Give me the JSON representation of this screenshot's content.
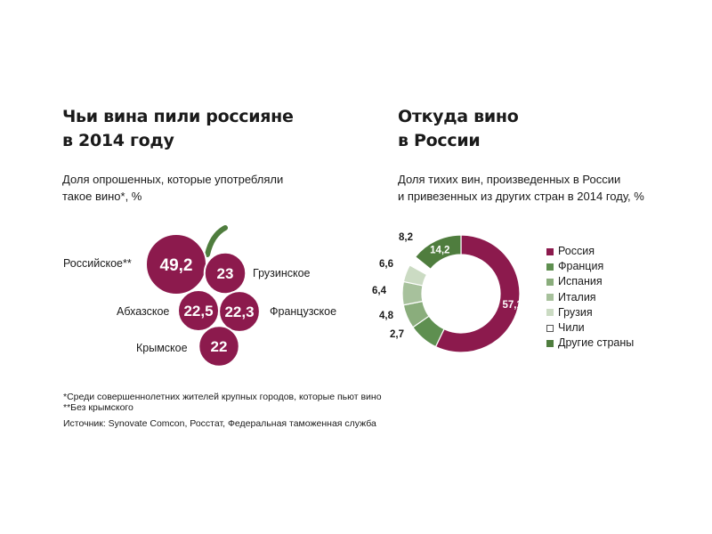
{
  "left": {
    "title_line1": "Чьи вина пили россияне",
    "title_line2": "в 2014 году",
    "subtitle_line1": "Доля опрошенных, которые употребляли",
    "subtitle_line2": "такое вино*, %"
  },
  "right": {
    "title_line1": "Откуда вино",
    "title_line2": "в России",
    "subtitle_line1": "Доля тихих вин, произведенных в России",
    "subtitle_line2": "и привезенных из других стран в 2014 году, %"
  },
  "notes": {
    "line1": "*Среди совершеннолетних жителей крупных городов, которые пьют вино",
    "line2": "**Без крымского",
    "source": "Источник: Synovate Comcon, Росстат, Федеральная таможенная служба"
  },
  "colors": {
    "grape": "#8c1a4d",
    "stem": "#4f7d3e"
  },
  "chart_data": [
    {
      "type": "bubble",
      "title": "Чьи вина пили россияне в 2014 году",
      "subtitle": "Доля опрошенных, которые употребляли такое вино*, %",
      "categories": [
        "Российское**",
        "Грузинское",
        "Абхазское",
        "Французское",
        "Крымское"
      ],
      "values": [
        49.2,
        23,
        22.5,
        22.3,
        22
      ],
      "value_labels": [
        "49,2",
        "23",
        "22,5",
        "22,3",
        "22"
      ]
    },
    {
      "type": "pie",
      "style": "donut",
      "title": "Откуда вино в России",
      "subtitle": "Доля тихих вин, произведенных в России и привезенных из других стран в 2014 году, %",
      "categories": [
        "Россия",
        "Франция",
        "Испания",
        "Италия",
        "Грузия",
        "Чили",
        "Другие страны"
      ],
      "values": [
        57.1,
        8.2,
        6.6,
        6.4,
        4.8,
        2.7,
        14.2
      ],
      "value_labels": [
        "57,1",
        "8,2",
        "6,6",
        "6,4",
        "4,8",
        "2,7",
        "14,2"
      ],
      "colors": [
        "#8c1a4d",
        "#5e8f50",
        "#8aad7c",
        "#a7c19c",
        "#cbdbc3",
        "#ffffff",
        "#4f7d3e"
      ],
      "legend": "right"
    }
  ]
}
